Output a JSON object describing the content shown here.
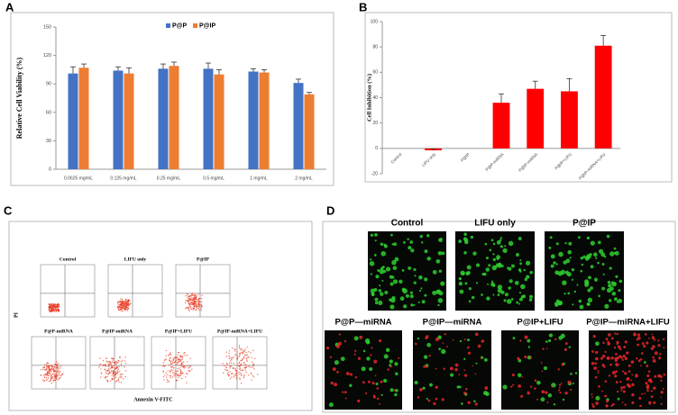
{
  "panel_labels": [
    "A",
    "B",
    "C",
    "D"
  ],
  "chart_data": [
    {
      "type": "bar",
      "y_label": "Relative Cell Viability (%)",
      "categories": [
        "0.0625 mg/mL",
        "0.125 mg/mL",
        "0.25 mg/mL",
        "0.5 mg/mL",
        "1 mg/mL",
        "2 mg/mL"
      ],
      "series": [
        {
          "name": "P@P",
          "color": "#4472c4",
          "values": [
            101,
            104,
            106,
            106,
            103,
            91
          ],
          "errors": [
            7,
            4,
            5,
            6,
            3,
            4
          ]
        },
        {
          "name": "P@IP",
          "color": "#ed7d31",
          "values": [
            107,
            101,
            109,
            100,
            102,
            79
          ],
          "errors": [
            4,
            6,
            4,
            5,
            3,
            2
          ]
        }
      ],
      "ylim": [
        0,
        150
      ],
      "yticks": [
        0,
        30,
        60,
        90,
        120,
        150
      ],
      "grid": false,
      "legend": "top"
    },
    {
      "type": "bar",
      "y_label": "Cell Inhibition (%)",
      "categories": [
        "Control",
        "LIFU only",
        "P@IP",
        "P@P-miRNA",
        "P@IP-miRNA",
        "P@IP+LIFU",
        "P@IP-miRNA+LIFU"
      ],
      "values": [
        0,
        -1.5,
        0,
        36,
        47,
        45,
        81
      ],
      "errors": [
        0,
        1,
        0,
        7,
        6,
        10,
        8
      ],
      "color": "#ff0000",
      "ylim": [
        -20,
        100
      ],
      "yticks": [
        -20,
        0,
        20,
        40,
        60,
        80,
        100
      ],
      "grid": false
    }
  ],
  "flow_cytometry": {
    "y_label": "PI",
    "x_label": "Annexin V-FITC",
    "plots": [
      "Control",
      "LIFU only",
      "P@IP",
      "P@P-miRNA",
      "P@IP-miRNA",
      "P@IP+LIFU",
      "P@IP-miRNA+LIFU"
    ]
  },
  "fluorescence": {
    "images": [
      "Control",
      "LIFU only",
      "P@IP",
      "P@P—miRNA",
      "P@IP—miRNA",
      "P@IP+LIFU",
      "P@IP—miRNA+LIFU"
    ]
  }
}
